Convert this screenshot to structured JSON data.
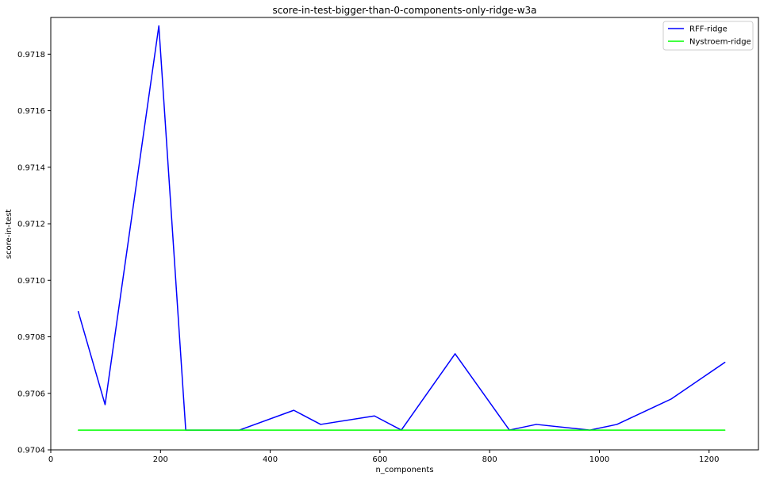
{
  "chart_data": {
    "type": "line",
    "title": "score-in-test-bigger-than-0-components-only-ridge-w3a",
    "xlabel": "n_components",
    "ylabel": "score-in-test",
    "xlim": [
      0,
      1290
    ],
    "ylim": [
      0.9704,
      0.97193
    ],
    "x_ticks": [
      0,
      200,
      400,
      600,
      800,
      1000,
      1200
    ],
    "y_ticks": [
      0.9704,
      0.9706,
      0.9708,
      0.971,
      0.9712,
      0.9714,
      0.9716,
      0.9718
    ],
    "y_tick_labels": [
      "0.9704",
      "0.9706",
      "0.9708",
      "0.9710",
      "0.9712",
      "0.9714",
      "0.9716",
      "0.9718"
    ],
    "grid": false,
    "legend_position": "top-right",
    "series": [
      {
        "name": "RFF-ridge",
        "color": "#0000ff",
        "x": [
          50,
          99,
          197,
          246,
          295,
          344,
          443,
          492,
          590,
          639,
          737,
          836,
          885,
          983,
          1032,
          1131,
          1229
        ],
        "y": [
          0.97089,
          0.97056,
          0.9719,
          0.97047,
          0.97047,
          0.97047,
          0.97054,
          0.97049,
          0.97052,
          0.97047,
          0.97074,
          0.97047,
          0.97049,
          0.97047,
          0.97049,
          0.97058,
          0.97071
        ]
      },
      {
        "name": "Nystroem-ridge",
        "color": "#00ff00",
        "x": [
          50,
          1229
        ],
        "y": [
          0.97047,
          0.97047
        ]
      }
    ]
  }
}
